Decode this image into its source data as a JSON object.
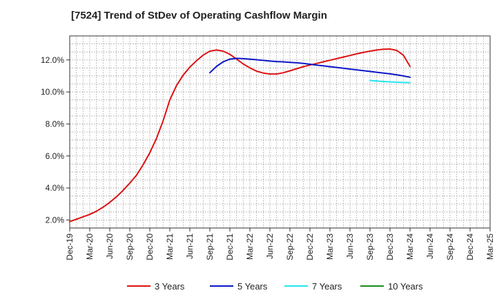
{
  "chart_data": {
    "type": "line",
    "title": "[7524]  Trend of StDev of Operating Cashflow Margin",
    "xlabel": "",
    "ylabel": "",
    "grid": true,
    "legend_position": "bottom",
    "x_ticks": [
      "Dec-19",
      "Mar-20",
      "Jun-20",
      "Sep-20",
      "Dec-20",
      "Mar-21",
      "Jun-21",
      "Sep-21",
      "Dec-21",
      "Mar-22",
      "Jun-22",
      "Sep-22",
      "Dec-22",
      "Mar-23",
      "Jun-23",
      "Sep-23",
      "Dec-23",
      "Mar-24",
      "Jun-24",
      "Sep-24",
      "Dec-24",
      "Mar-25"
    ],
    "y_ticks": [
      "2.0%",
      "4.0%",
      "6.0%",
      "8.0%",
      "10.0%",
      "12.0%"
    ],
    "y_range": [
      1.5,
      13.5
    ],
    "series": [
      {
        "name": "3 Years",
        "color": "#dd1111",
        "points": [
          [
            "Dec-19",
            1.9
          ],
          [
            "Jan-20",
            2.05
          ],
          [
            "Feb-20",
            2.2
          ],
          [
            "Mar-20",
            2.35
          ],
          [
            "Apr-20",
            2.55
          ],
          [
            "May-20",
            2.8
          ],
          [
            "Jun-20",
            3.1
          ],
          [
            "Jul-20",
            3.45
          ],
          [
            "Aug-20",
            3.85
          ],
          [
            "Sep-20",
            4.3
          ],
          [
            "Oct-20",
            4.8
          ],
          [
            "Nov-20",
            5.45
          ],
          [
            "Dec-20",
            6.2
          ],
          [
            "Jan-21",
            7.1
          ],
          [
            "Feb-21",
            8.2
          ],
          [
            "Mar-21",
            9.5
          ],
          [
            "Apr-21",
            10.4
          ],
          [
            "May-21",
            11.05
          ],
          [
            "Jun-21",
            11.55
          ],
          [
            "Jul-21",
            11.95
          ],
          [
            "Aug-21",
            12.3
          ],
          [
            "Sep-21",
            12.55
          ],
          [
            "Oct-21",
            12.62
          ],
          [
            "Nov-21",
            12.55
          ],
          [
            "Dec-21",
            12.35
          ],
          [
            "Jan-22",
            12.05
          ],
          [
            "Feb-22",
            11.75
          ],
          [
            "Mar-22",
            11.5
          ],
          [
            "Apr-22",
            11.3
          ],
          [
            "May-22",
            11.18
          ],
          [
            "Jun-22",
            11.12
          ],
          [
            "Jul-22",
            11.12
          ],
          [
            "Aug-22",
            11.2
          ],
          [
            "Sep-22",
            11.32
          ],
          [
            "Oct-22",
            11.45
          ],
          [
            "Nov-22",
            11.58
          ],
          [
            "Dec-22",
            11.68
          ],
          [
            "Jan-23",
            11.78
          ],
          [
            "Feb-23",
            11.88
          ],
          [
            "Mar-23",
            11.98
          ],
          [
            "Apr-23",
            12.08
          ],
          [
            "May-23",
            12.18
          ],
          [
            "Jun-23",
            12.28
          ],
          [
            "Jul-23",
            12.38
          ],
          [
            "Aug-23",
            12.47
          ],
          [
            "Sep-23",
            12.55
          ],
          [
            "Oct-23",
            12.62
          ],
          [
            "Nov-23",
            12.67
          ],
          [
            "Dec-23",
            12.68
          ],
          [
            "Jan-24",
            12.6
          ],
          [
            "Feb-24",
            12.3
          ],
          [
            "Mar-24",
            11.6
          ]
        ]
      },
      {
        "name": "5 Years",
        "color": "#0a16c8",
        "points": [
          [
            "Sep-21",
            11.2
          ],
          [
            "Oct-21",
            11.6
          ],
          [
            "Nov-21",
            11.88
          ],
          [
            "Dec-21",
            12.05
          ],
          [
            "Jan-22",
            12.1
          ],
          [
            "Feb-22",
            12.08
          ],
          [
            "Mar-22",
            12.05
          ],
          [
            "Apr-22",
            12.01
          ],
          [
            "May-22",
            11.97
          ],
          [
            "Jun-22",
            11.93
          ],
          [
            "Jul-22",
            11.9
          ],
          [
            "Aug-22",
            11.88
          ],
          [
            "Sep-22",
            11.85
          ],
          [
            "Oct-22",
            11.82
          ],
          [
            "Nov-22",
            11.78
          ],
          [
            "Dec-22",
            11.73
          ],
          [
            "Jan-23",
            11.68
          ],
          [
            "Feb-23",
            11.63
          ],
          [
            "Mar-23",
            11.58
          ],
          [
            "Apr-23",
            11.53
          ],
          [
            "May-23",
            11.48
          ],
          [
            "Jun-23",
            11.43
          ],
          [
            "Jul-23",
            11.38
          ],
          [
            "Aug-23",
            11.33
          ],
          [
            "Sep-23",
            11.28
          ],
          [
            "Oct-23",
            11.23
          ],
          [
            "Nov-23",
            11.18
          ],
          [
            "Dec-23",
            11.13
          ],
          [
            "Jan-24",
            11.07
          ],
          [
            "Feb-24",
            11.0
          ],
          [
            "Mar-24",
            10.92
          ]
        ]
      },
      {
        "name": "7 Years",
        "color": "#22e5f0",
        "points": [
          [
            "Sep-23",
            10.72
          ],
          [
            "Oct-23",
            10.68
          ],
          [
            "Nov-23",
            10.65
          ],
          [
            "Dec-23",
            10.63
          ],
          [
            "Jan-24",
            10.61
          ],
          [
            "Feb-24",
            10.59
          ],
          [
            "Mar-24",
            10.58
          ]
        ]
      },
      {
        "name": "10 Years",
        "color": "#1a8a1a",
        "points": []
      }
    ]
  }
}
